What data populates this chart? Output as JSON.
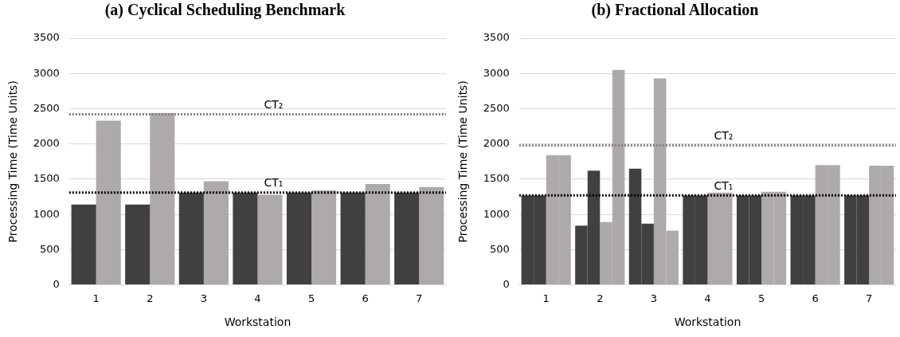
{
  "chart_data": [
    {
      "type": "bar",
      "title": "(a) Cyclical Scheduling Benchmark",
      "xlabel": "Workstation",
      "ylabel": "Processing Time (Time Units)",
      "categories": [
        "1",
        "2",
        "3",
        "4",
        "5",
        "6",
        "7"
      ],
      "series": [
        {
          "color": "#404040",
          "values": [
            1140,
            1140,
            1310,
            1310,
            1310,
            1310,
            1310
          ]
        },
        {
          "color": "#aeaaaa",
          "values": [
            2330,
            2440,
            1470,
            1280,
            1340,
            1430,
            1390
          ]
        }
      ],
      "ylim": [
        0,
        3500
      ],
      "yticks": [
        0,
        500,
        1000,
        1500,
        2000,
        2500,
        3000,
        3500
      ],
      "grid": "y",
      "legend": false,
      "ref_lines": [
        {
          "axis": "y",
          "value": 2420,
          "label": "CT₂",
          "color": "#808080",
          "line_style": "dotted"
        },
        {
          "axis": "y",
          "value": 1310,
          "label": "CT₁",
          "color": "#000000",
          "line_style": "dotted"
        }
      ]
    },
    {
      "type": "bar",
      "title": "(b) Fractional Allocation",
      "xlabel": "Workstation",
      "ylabel": "Processing Time (Time Units)",
      "categories": [
        "1",
        "2",
        "3",
        "4",
        "5",
        "6",
        "7"
      ],
      "series": [
        {
          "color": "#404040",
          "values": [
            1270,
            840,
            1650,
            1270,
            1270,
            1270,
            1270
          ]
        },
        {
          "color": "#404040",
          "values": [
            1270,
            1620,
            870,
            1270,
            1270,
            1270,
            1270
          ]
        },
        {
          "color": "#aeaaaa",
          "values": [
            1840,
            890,
            2930,
            1310,
            1320,
            1700,
            1690
          ]
        },
        {
          "color": "#aeaaaa",
          "values": [
            1840,
            3050,
            770,
            1310,
            1320,
            1700,
            1690
          ]
        }
      ],
      "ylim": [
        0,
        3500
      ],
      "yticks": [
        0,
        500,
        1000,
        1500,
        2000,
        2500,
        3000,
        3500
      ],
      "grid": "y",
      "legend": false,
      "ref_lines": [
        {
          "axis": "y",
          "value": 1980,
          "label": "CT₂",
          "color": "#808080",
          "line_style": "dotted"
        },
        {
          "axis": "y",
          "value": 1270,
          "label": "CT₁",
          "color": "#000000",
          "line_style": "dotted"
        }
      ]
    }
  ]
}
